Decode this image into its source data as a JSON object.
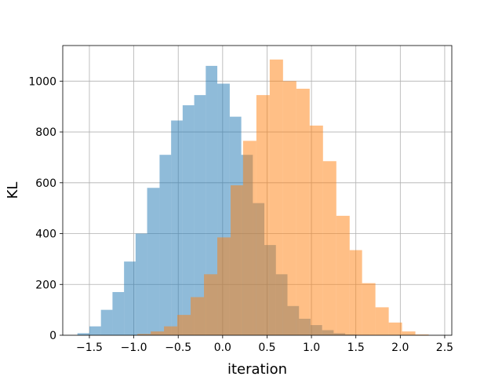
{
  "chart_data": {
    "type": "bar",
    "title": "",
    "xlabel": "iteration",
    "ylabel": "KL",
    "xlim": [
      -1.8,
      2.58
    ],
    "ylim": [
      0,
      1140
    ],
    "grid": true,
    "legend": "none",
    "xticks": [
      -1.5,
      -1.0,
      -0.5,
      0.0,
      0.5,
      1.0,
      1.5,
      2.0,
      2.5
    ],
    "xtick_labels": [
      "−1.5",
      "−1.0",
      "−0.5",
      "0.0",
      "0.5",
      "1.0",
      "1.5",
      "2.0",
      "2.5"
    ],
    "yticks": [
      0,
      200,
      400,
      600,
      800,
      1000
    ],
    "ytick_labels": [
      "0",
      "200",
      "400",
      "600",
      "800",
      "1000"
    ],
    "series": [
      {
        "color": "#1f77b4",
        "alpha": 0.5,
        "bin_edges": [
          -1.635,
          -1.5,
          -1.37,
          -1.24,
          -1.11,
          -0.98,
          -0.85,
          -0.71,
          -0.58,
          -0.45,
          -0.32,
          -0.19,
          -0.06,
          0.08,
          0.21,
          0.34,
          0.47,
          0.6,
          0.73,
          0.86,
          0.99,
          1.12,
          1.25,
          1.38,
          1.51,
          1.65
        ],
        "values": [
          8,
          35,
          100,
          170,
          290,
          400,
          580,
          710,
          845,
          905,
          945,
          1060,
          990,
          860,
          710,
          520,
          355,
          240,
          115,
          65,
          40,
          20,
          8,
          3,
          1
        ]
      },
      {
        "color": "#ff7f0e",
        "alpha": 0.5,
        "bin_edges": [
          -0.96,
          -0.81,
          -0.66,
          -0.51,
          -0.36,
          -0.21,
          -0.06,
          0.09,
          0.23,
          0.38,
          0.53,
          0.68,
          0.83,
          0.98,
          1.13,
          1.28,
          1.43,
          1.57,
          1.72,
          1.87,
          2.02,
          2.17,
          2.32
        ],
        "values": [
          5,
          15,
          35,
          80,
          150,
          240,
          385,
          590,
          765,
          945,
          1085,
          1000,
          970,
          825,
          685,
          470,
          335,
          205,
          110,
          50,
          15,
          3
        ]
      }
    ]
  }
}
